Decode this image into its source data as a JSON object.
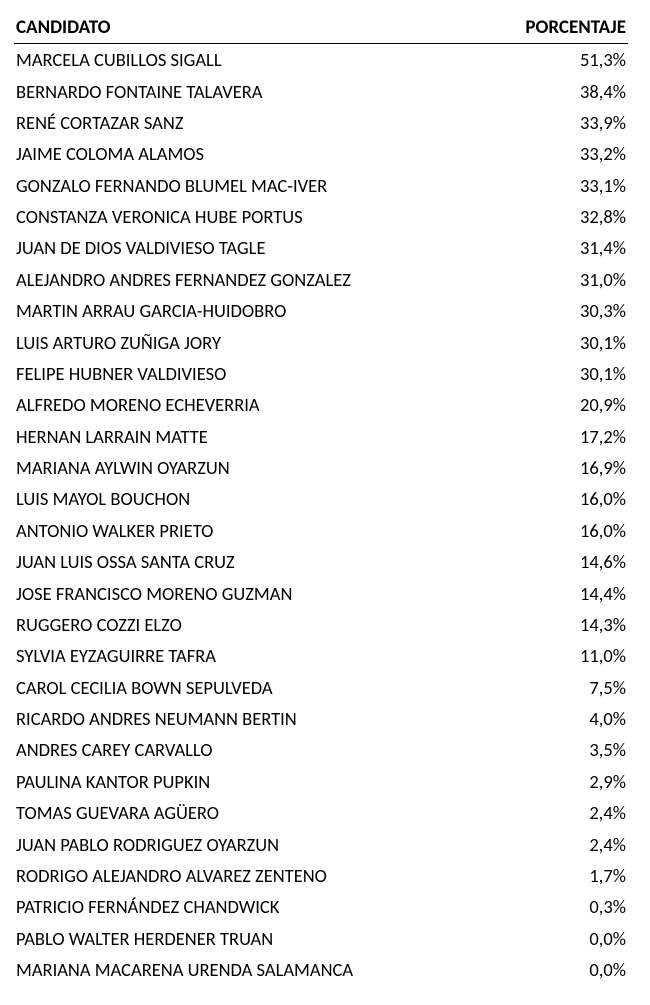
{
  "table": {
    "type": "table",
    "background_color": "#ffffff",
    "text_color": "#000000",
    "header_border_color": "#000000",
    "font_family": "Calibri, Arial, sans-serif",
    "header_fontsize": 19,
    "body_fontsize": 18.5,
    "columns": [
      {
        "key": "candidate",
        "label": "CANDIDATO",
        "align": "left"
      },
      {
        "key": "percent",
        "label": "PORCENTAJE",
        "align": "right"
      }
    ],
    "rows": [
      {
        "candidate": "MARCELA CUBILLOS SIGALL",
        "percent": "51,3%"
      },
      {
        "candidate": "BERNARDO FONTAINE TALAVERA",
        "percent": "38,4%"
      },
      {
        "candidate": "RENÉ CORTAZAR SANZ",
        "percent": "33,9%"
      },
      {
        "candidate": "JAIME COLOMA ALAMOS",
        "percent": "33,2%"
      },
      {
        "candidate": "GONZALO FERNANDO BLUMEL MAC-IVER",
        "percent": "33,1%"
      },
      {
        "candidate": "CONSTANZA VERONICA HUBE PORTUS",
        "percent": "32,8%"
      },
      {
        "candidate": "JUAN DE DIOS VALDIVIESO TAGLE",
        "percent": "31,4%"
      },
      {
        "candidate": "ALEJANDRO ANDRES FERNANDEZ GONZALEZ",
        "percent": "31,0%"
      },
      {
        "candidate": "MARTIN ARRAU GARCIA-HUIDOBRO",
        "percent": "30,3%"
      },
      {
        "candidate": "LUIS ARTURO ZUÑIGA JORY",
        "percent": "30,1%"
      },
      {
        "candidate": "FELIPE HUBNER VALDIVIESO",
        "percent": "30,1%"
      },
      {
        "candidate": "ALFREDO MORENO ECHEVERRIA",
        "percent": "20,9%"
      },
      {
        "candidate": "HERNAN LARRAIN MATTE",
        "percent": "17,2%"
      },
      {
        "candidate": "MARIANA AYLWIN OYARZUN",
        "percent": "16,9%"
      },
      {
        "candidate": "LUIS MAYOL BOUCHON",
        "percent": "16,0%"
      },
      {
        "candidate": "ANTONIO WALKER PRIETO",
        "percent": "16,0%"
      },
      {
        "candidate": "JUAN LUIS OSSA SANTA CRUZ",
        "percent": "14,6%"
      },
      {
        "candidate": "JOSE FRANCISCO MORENO GUZMAN",
        "percent": "14,4%"
      },
      {
        "candidate": "RUGGERO COZZI ELZO",
        "percent": "14,3%"
      },
      {
        "candidate": "SYLVIA EYZAGUIRRE TAFRA",
        "percent": "11,0%"
      },
      {
        "candidate": "CAROL CECILIA BOWN SEPULVEDA",
        "percent": "7,5%"
      },
      {
        "candidate": "RICARDO ANDRES NEUMANN BERTIN",
        "percent": "4,0%"
      },
      {
        "candidate": "ANDRES CAREY CARVALLO",
        "percent": "3,5%"
      },
      {
        "candidate": "PAULINA KANTOR PUPKIN",
        "percent": "2,9%"
      },
      {
        "candidate": "TOMAS GUEVARA AGÜERO",
        "percent": "2,4%"
      },
      {
        "candidate": "JUAN PABLO RODRIGUEZ OYARZUN",
        "percent": "2,4%"
      },
      {
        "candidate": "RODRIGO ALEJANDRO ALVAREZ ZENTENO",
        "percent": "1,7%"
      },
      {
        "candidate": "PATRICIO FERNÁNDEZ CHANDWICK",
        "percent": "0,3%"
      },
      {
        "candidate": "PABLO WALTER HERDENER TRUAN",
        "percent": "0,0%"
      },
      {
        "candidate": "MARIANA MACARENA URENDA SALAMANCA",
        "percent": "0,0%"
      }
    ]
  }
}
